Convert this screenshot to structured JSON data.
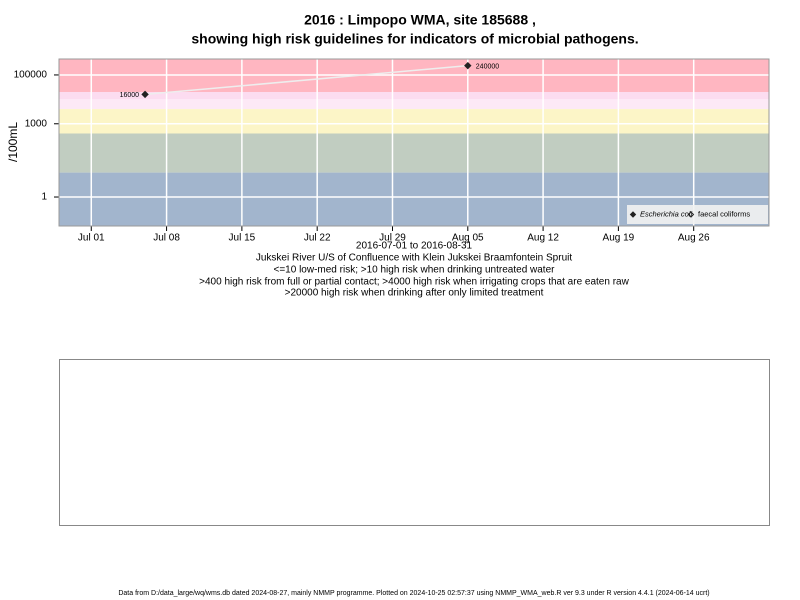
{
  "chart_data": {
    "type": "scatter",
    "title": "2016 : Limpopo WMA, site 185688 ,",
    "subtitle": "showing high risk guidelines for indicators of microbial pathogens.",
    "y_label": "/100mL",
    "x_label": "2016-07-01 to 2016-08-31",
    "notes": [
      "Jukskei River U/S of Confluence with Klein Jukskei Braamfontein Spruit",
      "<=10 low-med risk; >10 high risk when drinking untreated water",
      ">400 high risk from full or partial contact; >4000 high risk when irrigating crops that are eaten raw",
      ">20000 high risk when drinking after only limited treatment"
    ],
    "footer": "Data from D:/data_large/wq/wms.db dated 2024-08-27, mainly NMMP programme. Plotted on 2024-10-25 02:57:37 using NMMP_WMA_web.R ver 9.3 under R version 4.4.1 (2024-06-14 ucrt)",
    "log_y": true,
    "grid": true,
    "legend": "bottom-right",
    "xlim": [
      "2016-06-28",
      "2016-09-02"
    ],
    "ylim": [
      0.065,
      450000
    ],
    "xticks": [
      {
        "value": "2016-07-01",
        "label": "Jul 01"
      },
      {
        "value": "2016-07-08",
        "label": "Jul 08"
      },
      {
        "value": "2016-07-15",
        "label": "Jul 15"
      },
      {
        "value": "2016-07-22",
        "label": "Jul 22"
      },
      {
        "value": "2016-07-29",
        "label": "Jul 29"
      },
      {
        "value": "2016-08-05",
        "label": "Aug 05"
      },
      {
        "value": "2016-08-12",
        "label": "Aug 12"
      },
      {
        "value": "2016-08-19",
        "label": "Aug 19"
      },
      {
        "value": "2016-08-26",
        "label": "Aug 26"
      }
    ],
    "yticks": [
      1,
      1000,
      100000
    ],
    "bands": [
      {
        "min": 20000,
        "max": 450000,
        "color": "#ffb6c1"
      },
      {
        "min": 10000,
        "max": 20000,
        "color": "#fcdcf0"
      },
      {
        "min": 4000,
        "max": 10000,
        "color": "#fde9f6"
      },
      {
        "min": 400,
        "max": 4000,
        "color": "#fcf5c7"
      },
      {
        "min": 10,
        "max": 400,
        "color": "#c1cdc1"
      },
      {
        "min": 0.065,
        "max": 10,
        "color": "#a2b5cd"
      }
    ],
    "series": [
      {
        "name": "Escherichia coli",
        "color": "#222222",
        "filled": true,
        "x": [
          "2016-07-06",
          "2016-08-05"
        ],
        "values": [
          16000,
          240000
        ]
      },
      {
        "name": "faecal coliforms",
        "color": "#222222",
        "filled": false,
        "x": [],
        "values": []
      }
    ]
  }
}
